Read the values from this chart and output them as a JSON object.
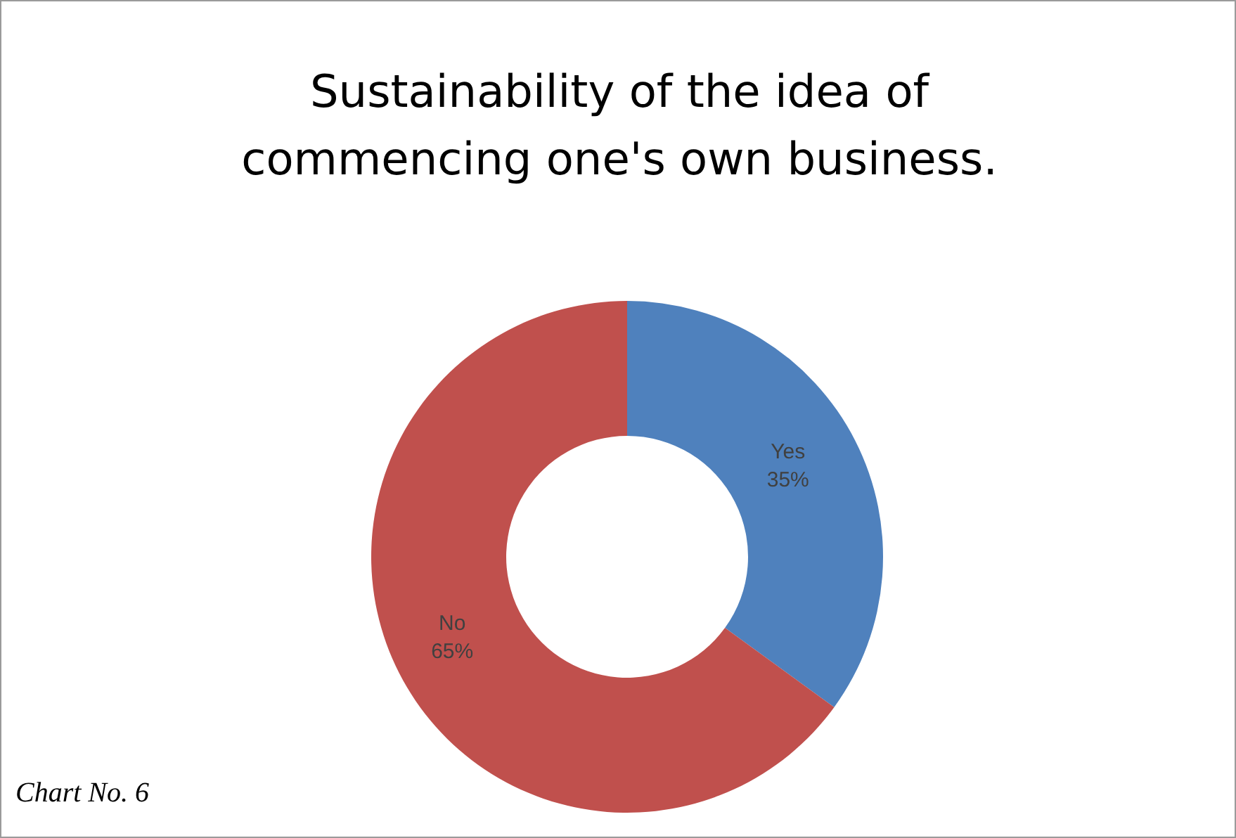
{
  "chart_data": {
    "type": "donut",
    "title": "Sustainability of the idea of commencing one's own business.",
    "categories": [
      "Yes",
      "No"
    ],
    "values": [
      35,
      65
    ],
    "colors": [
      "#4f81bd",
      "#c0504d"
    ],
    "value_labels": [
      "35%",
      "65%"
    ],
    "annotations": [
      "Chart No. 6"
    ]
  }
}
